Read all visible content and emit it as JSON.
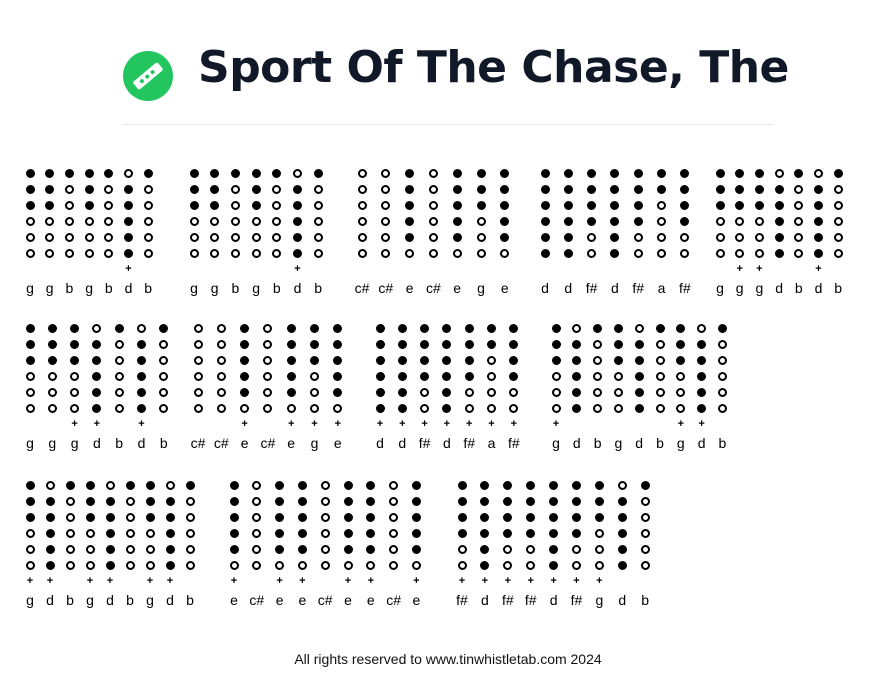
{
  "title": "Sport Of The Chase, The",
  "logo": {
    "icon": "tin-whistle-icon",
    "color": "#22c55e"
  },
  "footer": "All rights reserved to www.tinwhistletab.com 2024",
  "tab_groups": [
    {
      "notes": [
        {
          "n": "g",
          "h": "111000",
          "p": false
        },
        {
          "n": "g",
          "h": "111000",
          "p": false
        },
        {
          "n": "b",
          "h": "100000",
          "p": false
        },
        {
          "n": "g",
          "h": "111000",
          "p": false
        },
        {
          "n": "b",
          "h": "100000",
          "p": false
        },
        {
          "n": "d",
          "h": "011111",
          "p": true
        },
        {
          "n": "b",
          "h": "100000",
          "p": false
        }
      ]
    },
    {
      "notes": [
        {
          "n": "g",
          "h": "111000",
          "p": false
        },
        {
          "n": "g",
          "h": "111000",
          "p": false
        },
        {
          "n": "b",
          "h": "100000",
          "p": false
        },
        {
          "n": "g",
          "h": "111000",
          "p": false
        },
        {
          "n": "b",
          "h": "100000",
          "p": false
        },
        {
          "n": "d",
          "h": "011111",
          "p": true
        },
        {
          "n": "b",
          "h": "100000",
          "p": false
        }
      ]
    },
    {
      "notes": [
        {
          "n": "c#",
          "h": "000000",
          "p": false
        },
        {
          "n": "c#",
          "h": "000000",
          "p": false
        },
        {
          "n": "e",
          "h": "111110",
          "p": false
        },
        {
          "n": "c#",
          "h": "000000",
          "p": false
        },
        {
          "n": "e",
          "h": "111110",
          "p": false
        },
        {
          "n": "g",
          "h": "111000",
          "p": false
        },
        {
          "n": "e",
          "h": "111110",
          "p": false
        }
      ]
    },
    {
      "notes": [
        {
          "n": "d",
          "h": "111111",
          "p": false
        },
        {
          "n": "d",
          "h": "111111",
          "p": false
        },
        {
          "n": "f#",
          "h": "111100",
          "p": false
        },
        {
          "n": "d",
          "h": "111111",
          "p": false
        },
        {
          "n": "f#",
          "h": "111100",
          "p": false
        },
        {
          "n": "a",
          "h": "110000",
          "p": false
        },
        {
          "n": "f#",
          "h": "111100",
          "p": false
        }
      ]
    },
    {
      "notes": [
        {
          "n": "g",
          "h": "111000",
          "p": false
        },
        {
          "n": "g",
          "h": "111000",
          "p": true
        },
        {
          "n": "g",
          "h": "111000",
          "p": true
        },
        {
          "n": "d",
          "h": "011111",
          "p": false
        },
        {
          "n": "b",
          "h": "100000",
          "p": false
        },
        {
          "n": "d",
          "h": "011111",
          "p": true
        },
        {
          "n": "b",
          "h": "100000",
          "p": false
        }
      ]
    },
    {
      "notes": [
        {
          "n": "g",
          "h": "111000",
          "p": false
        },
        {
          "n": "g",
          "h": "111000",
          "p": false
        },
        {
          "n": "g",
          "h": "111000",
          "p": true
        },
        {
          "n": "d",
          "h": "011111",
          "p": true
        },
        {
          "n": "b",
          "h": "100000",
          "p": false
        },
        {
          "n": "d",
          "h": "011111",
          "p": true
        },
        {
          "n": "b",
          "h": "100000",
          "p": false
        }
      ]
    },
    {
      "notes": [
        {
          "n": "c#",
          "h": "000000",
          "p": false
        },
        {
          "n": "c#",
          "h": "000000",
          "p": false
        },
        {
          "n": "e",
          "h": "111110",
          "p": true
        },
        {
          "n": "c#",
          "h": "000000",
          "p": false
        },
        {
          "n": "e",
          "h": "111110",
          "p": true
        },
        {
          "n": "g",
          "h": "111000",
          "p": true
        },
        {
          "n": "e",
          "h": "111110",
          "p": true
        }
      ]
    },
    {
      "notes": [
        {
          "n": "d",
          "h": "111111",
          "p": true
        },
        {
          "n": "d",
          "h": "111111",
          "p": true
        },
        {
          "n": "f#",
          "h": "111100",
          "p": true
        },
        {
          "n": "d",
          "h": "111111",
          "p": true
        },
        {
          "n": "f#",
          "h": "111100",
          "p": true
        },
        {
          "n": "a",
          "h": "110000",
          "p": true
        },
        {
          "n": "f#",
          "h": "111100",
          "p": true
        }
      ]
    },
    {
      "notes": [
        {
          "n": "g",
          "h": "111000",
          "p": true
        },
        {
          "n": "d",
          "h": "011111",
          "p": false
        },
        {
          "n": "b",
          "h": "100000",
          "p": false
        },
        {
          "n": "g",
          "h": "111000",
          "p": false
        },
        {
          "n": "d",
          "h": "011111",
          "p": false
        },
        {
          "n": "b",
          "h": "100000",
          "p": false
        },
        {
          "n": "g",
          "h": "111000",
          "p": true
        },
        {
          "n": "d",
          "h": "011111",
          "p": true
        },
        {
          "n": "b",
          "h": "100000",
          "p": false
        }
      ]
    },
    {
      "notes": [
        {
          "n": "g",
          "h": "111000",
          "p": true
        },
        {
          "n": "d",
          "h": "011111",
          "p": true
        },
        {
          "n": "b",
          "h": "100000",
          "p": false
        },
        {
          "n": "g",
          "h": "111000",
          "p": true
        },
        {
          "n": "d",
          "h": "011111",
          "p": true
        },
        {
          "n": "b",
          "h": "100000",
          "p": false
        },
        {
          "n": "g",
          "h": "111000",
          "p": true
        },
        {
          "n": "d",
          "h": "011111",
          "p": true
        },
        {
          "n": "b",
          "h": "100000",
          "p": false
        }
      ]
    },
    {
      "notes": [
        {
          "n": "e",
          "h": "111110",
          "p": true
        },
        {
          "n": "c#",
          "h": "000000",
          "p": false
        },
        {
          "n": "e",
          "h": "111110",
          "p": true
        },
        {
          "n": "e",
          "h": "111110",
          "p": true
        },
        {
          "n": "c#",
          "h": "000000",
          "p": false
        },
        {
          "n": "e",
          "h": "111110",
          "p": true
        },
        {
          "n": "e",
          "h": "111110",
          "p": true
        },
        {
          "n": "c#",
          "h": "000000",
          "p": false
        },
        {
          "n": "e",
          "h": "111110",
          "p": true
        }
      ]
    },
    {
      "notes": [
        {
          "n": "f#",
          "h": "111100",
          "p": true
        },
        {
          "n": "d",
          "h": "111111",
          "p": true
        },
        {
          "n": "f#",
          "h": "111100",
          "p": true
        },
        {
          "n": "f#",
          "h": "111100",
          "p": true
        },
        {
          "n": "d",
          "h": "111111",
          "p": true
        },
        {
          "n": "f#",
          "h": "111100",
          "p": true
        },
        {
          "n": "g",
          "h": "111000",
          "p": true
        },
        {
          "n": "d",
          "h": "011111",
          "p": false
        },
        {
          "n": "b",
          "h": "100000",
          "p": false
        }
      ]
    }
  ]
}
